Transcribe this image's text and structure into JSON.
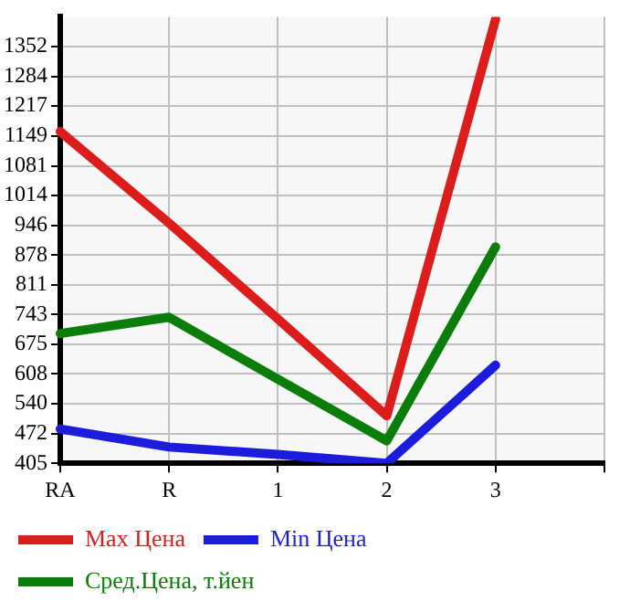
{
  "chart_data": {
    "type": "line",
    "categories": [
      "RA",
      "R",
      "1",
      "2",
      "3",
      null
    ],
    "series": [
      {
        "name": "Max Цена",
        "color": "#dd1c1c",
        "values": [
          1159,
          951,
          733,
          513,
          1415,
          null
        ]
      },
      {
        "name": "Min Цена",
        "color": "#1c1cdd",
        "values": [
          483,
          442,
          425,
          405,
          628,
          null
        ]
      },
      {
        "name": "Сред.Цена, т.йен",
        "color": "#0b7d0b",
        "values": [
          700,
          737,
          596,
          456,
          897,
          null
        ]
      }
    ],
    "ylim": [
      405,
      1420
    ],
    "yticks": [
      405,
      472,
      540,
      608,
      675,
      743,
      811,
      878,
      946,
      1014,
      1081,
      1149,
      1217,
      1284,
      1352
    ],
    "grid": true,
    "legend": "bottom",
    "marker": "none",
    "line_style": "solid"
  }
}
